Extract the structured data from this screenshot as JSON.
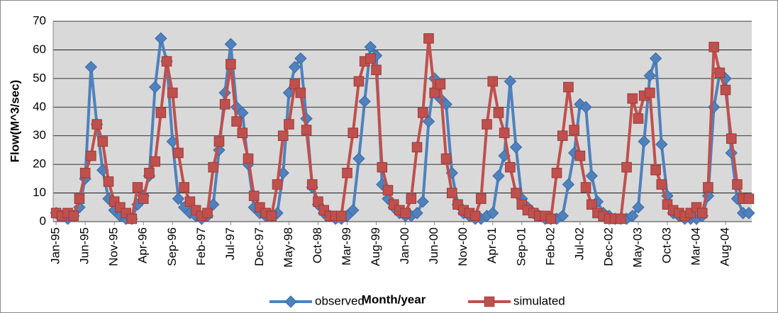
{
  "chart_data": {
    "type": "line",
    "y_label": "Flow(M^3/sec)",
    "x_label": "Month/year",
    "categories": [
      "Jan-95",
      null,
      null,
      null,
      null,
      "Jun-95",
      null,
      null,
      null,
      null,
      "Nov-95",
      null,
      null,
      null,
      null,
      "Apr-96",
      null,
      null,
      null,
      null,
      "Sep-96",
      null,
      null,
      null,
      null,
      "Feb-97",
      null,
      null,
      null,
      null,
      "Jul-97",
      null,
      null,
      null,
      null,
      "Dec-97",
      null,
      null,
      null,
      null,
      "May-98",
      null,
      null,
      null,
      null,
      "Oct-98",
      null,
      null,
      null,
      null,
      "Mar-99",
      null,
      null,
      null,
      null,
      "Aug-99",
      null,
      null,
      null,
      null,
      "Jan-00",
      null,
      null,
      null,
      null,
      "Jun-00",
      null,
      null,
      null,
      null,
      "Nov-00",
      null,
      null,
      null,
      null,
      "Apr-01",
      null,
      null,
      null,
      null,
      "Sep-01",
      null,
      null,
      null,
      null,
      "Feb-02",
      null,
      null,
      null,
      null,
      "Jul-02",
      null,
      null,
      null,
      null,
      "Dec-02",
      null,
      null,
      null,
      null,
      "May-03",
      null,
      null,
      null,
      null,
      "Oct-03",
      null,
      null,
      null,
      null,
      "Mar-04",
      null,
      null,
      null,
      null,
      "Aug-04",
      null,
      null,
      null,
      null
    ],
    "series": [
      {
        "name": "observed",
        "color": "#4f81bd",
        "marker": "diamond",
        "values": [
          3,
          2,
          1,
          2,
          5,
          15,
          54,
          34,
          18,
          8,
          4,
          2,
          1,
          1,
          6,
          9,
          16,
          47,
          64,
          56,
          28,
          8,
          5,
          3,
          2,
          1,
          2,
          6,
          25,
          45,
          62,
          40,
          38,
          20,
          5,
          3,
          2,
          2,
          3,
          17,
          45,
          54,
          57,
          36,
          12,
          6,
          3,
          2,
          1,
          1,
          2,
          4,
          22,
          42,
          61,
          58,
          13,
          8,
          5,
          3,
          2,
          2,
          3,
          7,
          35,
          50,
          43,
          41,
          17,
          6,
          3,
          2,
          1,
          1,
          2,
          3,
          16,
          23,
          49,
          26,
          8,
          5,
          3,
          2,
          1,
          1,
          1,
          2,
          13,
          24,
          41,
          40,
          16,
          7,
          3,
          2,
          1,
          1,
          1,
          2,
          5,
          28,
          51,
          57,
          27,
          9,
          3,
          2,
          1,
          1,
          1,
          2,
          9,
          40,
          52,
          50,
          24,
          8,
          3,
          3
        ]
      },
      {
        "name": "simulated",
        "color": "#c0504d",
        "marker": "square",
        "values": [
          3,
          2,
          3,
          2,
          8,
          17,
          23,
          34,
          28,
          14,
          7,
          5,
          3,
          1,
          12,
          8,
          17,
          21,
          38,
          56,
          45,
          24,
          12,
          7,
          4,
          2,
          3,
          19,
          28,
          41,
          55,
          35,
          31,
          22,
          9,
          5,
          3,
          2,
          13,
          30,
          34,
          48,
          45,
          32,
          13,
          7,
          4,
          2,
          2,
          2,
          17,
          31,
          49,
          56,
          57,
          53,
          19,
          11,
          6,
          4,
          3,
          8,
          26,
          38,
          64,
          45,
          48,
          22,
          10,
          6,
          4,
          3,
          2,
          8,
          34,
          49,
          38,
          31,
          19,
          10,
          6,
          4,
          3,
          2,
          2,
          1,
          17,
          30,
          47,
          32,
          23,
          12,
          6,
          3,
          2,
          1,
          1,
          1,
          19,
          43,
          36,
          44,
          45,
          18,
          13,
          6,
          4,
          3,
          2,
          3,
          5,
          3,
          12,
          61,
          52,
          46,
          29,
          13,
          8,
          8
        ]
      }
    ],
    "ylim": [
      0,
      70
    ],
    "yticks": [
      0,
      10,
      20,
      30,
      40,
      50,
      60,
      70
    ],
    "grid": true,
    "legend": "bottom"
  }
}
